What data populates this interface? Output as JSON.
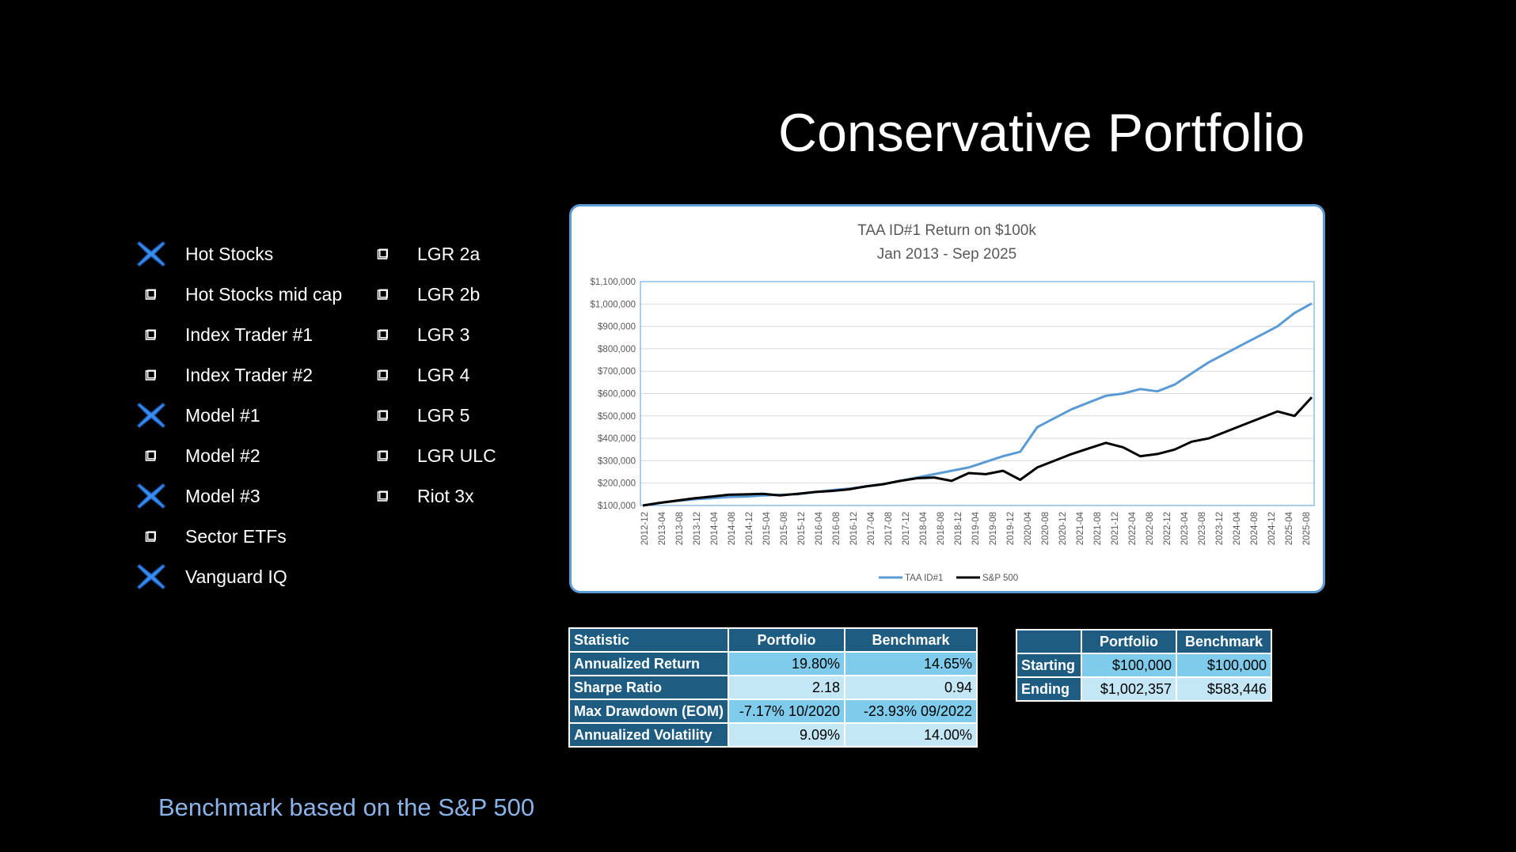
{
  "slide": {
    "title": "Conservative Portfolio",
    "footnote": "Benchmark based on the S&P 500"
  },
  "colors": {
    "background": "#000000",
    "accent_blue": "#5b9bd5",
    "x_marker": "#3d8df0",
    "table_header": "#1f5c82",
    "table_cell_dark": "#7fcbeb",
    "table_cell_light": "#c4e7f6",
    "footnote": "#8ab4e8"
  },
  "strategies": {
    "left_column": [
      {
        "label": "Hot Stocks",
        "marker": "x-icon"
      },
      {
        "label": "Hot Stocks mid cap",
        "marker": "checkbox-icon"
      },
      {
        "label": "Index Trader #1",
        "marker": "checkbox-icon"
      },
      {
        "label": "Index Trader #2",
        "marker": "checkbox-icon"
      },
      {
        "label": "Model #1",
        "marker": "x-icon"
      },
      {
        "label": "Model #2",
        "marker": "checkbox-icon"
      },
      {
        "label": "Model #3",
        "marker": "x-icon"
      },
      {
        "label": "Sector ETFs",
        "marker": "checkbox-icon"
      },
      {
        "label": "Vanguard IQ",
        "marker": "x-icon"
      }
    ],
    "right_column": [
      {
        "label": "LGR 2a",
        "marker": "checkbox-icon"
      },
      {
        "label": "LGR 2b",
        "marker": "checkbox-icon"
      },
      {
        "label": "LGR 3",
        "marker": "checkbox-icon"
      },
      {
        "label": "LGR 4",
        "marker": "checkbox-icon"
      },
      {
        "label": "LGR 5",
        "marker": "checkbox-icon"
      },
      {
        "label": "LGR ULC",
        "marker": "checkbox-icon"
      },
      {
        "label": "Riot 3x",
        "marker": "checkbox-icon"
      }
    ]
  },
  "chart_data": {
    "type": "line",
    "title": "TAA ID#1 Return on $100k",
    "subtitle": "Jan 2013 - Sep 2025",
    "ylim": [
      100000,
      1100000
    ],
    "y_ticks": [
      "$100,000",
      "$200,000",
      "$300,000",
      "$400,000",
      "$500,000",
      "$600,000",
      "$700,000",
      "$800,000",
      "$900,000",
      "$1,000,000",
      "$1,100,000"
    ],
    "x_tick_labels": [
      "2012-12",
      "2013-04",
      "2013-08",
      "2013-12",
      "2014-04",
      "2014-08",
      "2014-12",
      "2015-04",
      "2015-08",
      "2015-12",
      "2016-04",
      "2016-08",
      "2016-12",
      "2017-04",
      "2017-08",
      "2017-12",
      "2018-04",
      "2018-08",
      "2018-12",
      "2019-04",
      "2019-08",
      "2019-12",
      "2020-04",
      "2020-08",
      "2020-12",
      "2021-04",
      "2021-08",
      "2021-12",
      "2022-04",
      "2022-08",
      "2022-12",
      "2023-04",
      "2023-08",
      "2023-12",
      "2024-04",
      "2024-08",
      "2024-12",
      "2025-04",
      "2025-08"
    ],
    "grid": true,
    "legend_position": "bottom",
    "series": [
      {
        "name": "TAA ID#1",
        "color": "#5b9bd5",
        "values": [
          100000,
          112000,
          120000,
          128000,
          133000,
          138000,
          140000,
          145000,
          148000,
          150000,
          160000,
          168000,
          175000,
          185000,
          195000,
          210000,
          225000,
          240000,
          255000,
          270000,
          295000,
          320000,
          340000,
          450000,
          490000,
          530000,
          560000,
          590000,
          600000,
          620000,
          610000,
          640000,
          690000,
          740000,
          780000,
          820000,
          860000,
          900000,
          960000,
          1002357
        ]
      },
      {
        "name": "S&P 500",
        "color": "#000000",
        "values": [
          100000,
          112000,
          122000,
          132000,
          140000,
          148000,
          150000,
          152000,
          145000,
          152000,
          160000,
          165000,
          172000,
          185000,
          195000,
          210000,
          222000,
          225000,
          210000,
          245000,
          240000,
          255000,
          215000,
          270000,
          300000,
          330000,
          355000,
          380000,
          360000,
          320000,
          330000,
          350000,
          385000,
          400000,
          430000,
          460000,
          490000,
          520000,
          500000,
          583446
        ]
      }
    ]
  },
  "stats_table": {
    "headers": [
      "Statistic",
      "Portfolio",
      "Benchmark"
    ],
    "rows": [
      {
        "label": "Annualized Return",
        "portfolio": "19.80%",
        "benchmark": "14.65%"
      },
      {
        "label": "Sharpe Ratio",
        "portfolio": "2.18",
        "benchmark": "0.94"
      },
      {
        "label": "Max Drawdown (EOM)",
        "portfolio": "-7.17% 10/2020",
        "benchmark": "-23.93%  09/2022"
      },
      {
        "label": "Annualized Volatility",
        "portfolio": "9.09%",
        "benchmark": "14.00%"
      }
    ]
  },
  "money_table": {
    "headers": [
      "",
      "Portfolio",
      "Benchmark"
    ],
    "rows": [
      {
        "label": "Starting",
        "portfolio": "$100,000",
        "benchmark": "$100,000"
      },
      {
        "label": "Ending",
        "portfolio": "$1,002,357",
        "benchmark": "$583,446"
      }
    ]
  }
}
